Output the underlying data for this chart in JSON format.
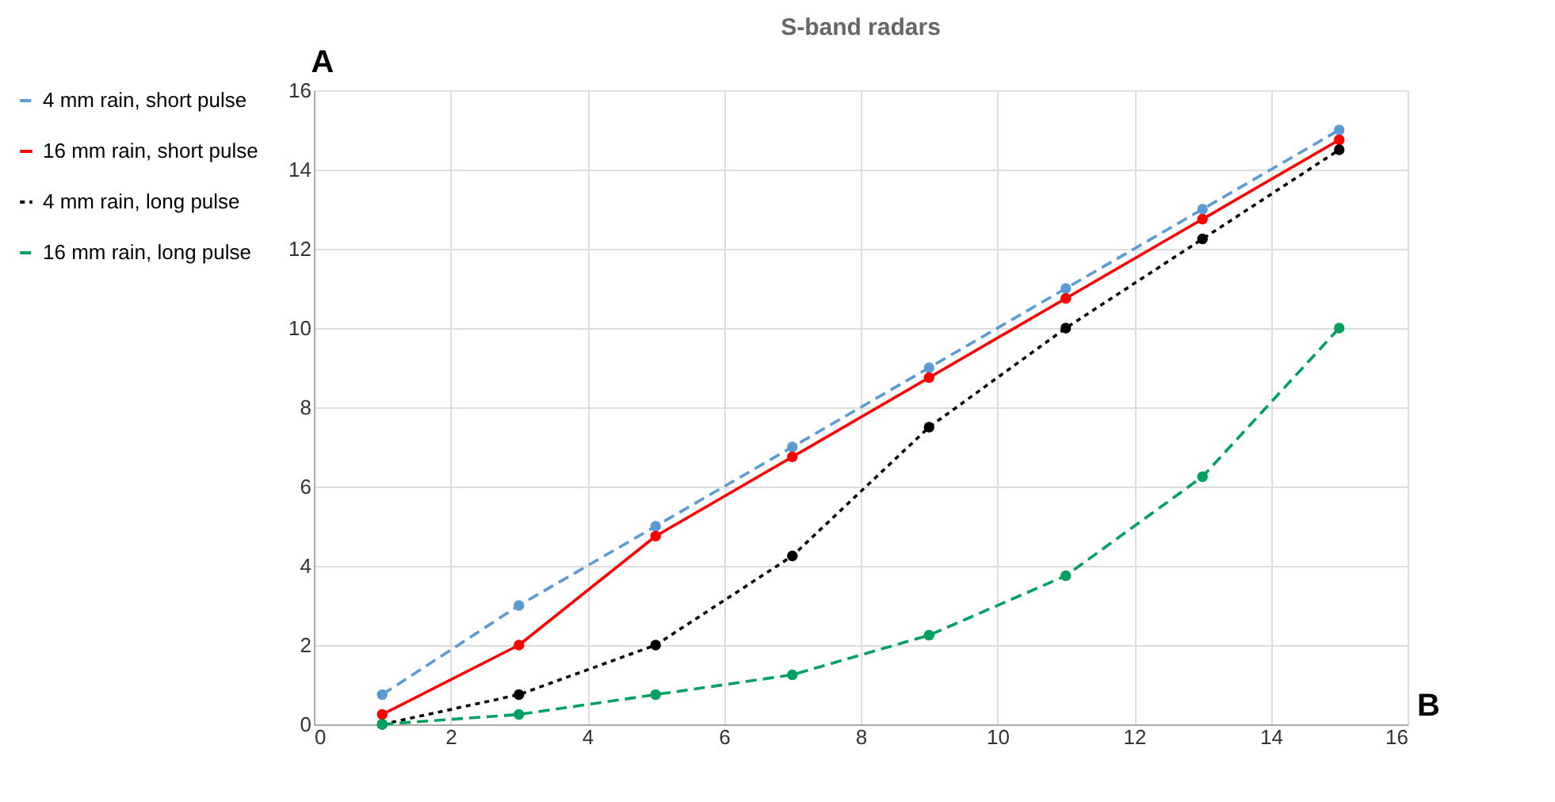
{
  "chart_data": {
    "type": "line",
    "title": "S-band radars",
    "xlabel": "B",
    "ylabel": "A",
    "x": [
      1,
      3,
      5,
      7,
      9,
      11,
      13,
      15
    ],
    "series": [
      {
        "name": "4 mm rain, short pulse",
        "color": "#5b9bd5",
        "line_style": "dashed",
        "values": [
          0.75,
          3,
          5,
          7,
          9,
          11,
          13,
          15
        ]
      },
      {
        "name": "16 mm rain, short pulse",
        "color": "#ff0000",
        "line_style": "solid",
        "values": [
          0.25,
          2,
          4.75,
          6.75,
          8.75,
          10.75,
          12.75,
          14.75
        ]
      },
      {
        "name": "4 mm rain, long pulse",
        "color": "#000000",
        "line_style": "dotted",
        "values": [
          0,
          0.75,
          2,
          4.25,
          7.5,
          10,
          12.25,
          14.5
        ]
      },
      {
        "name": "16 mm rain, long pulse",
        "color": "#00a060",
        "line_style": "dashed",
        "values": [
          0,
          0.25,
          0.75,
          1.25,
          2.25,
          3.75,
          6.25,
          10
        ]
      }
    ],
    "xlim": [
      0,
      16
    ],
    "xticks": [
      0,
      2,
      4,
      6,
      8,
      10,
      12,
      14,
      16
    ],
    "ylim": [
      0,
      16
    ],
    "yticks": [
      0,
      2,
      4,
      6,
      8,
      10,
      12,
      14,
      16
    ],
    "grid": true,
    "legend": "left",
    "marker": "circle"
  }
}
